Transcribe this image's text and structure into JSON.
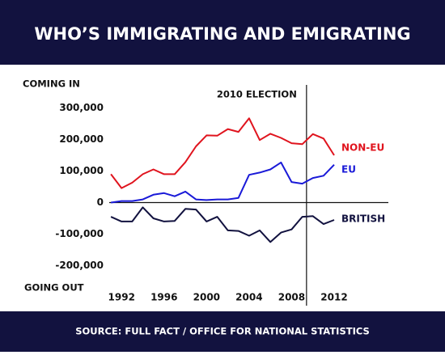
{
  "chart_data": {
    "type": "line",
    "title": "WHO’S IMMIGRATING AND EMIGRATING",
    "source": "SOURCE: FULL FACT / OFFICE FOR NATIONAL STATISTICS",
    "top_label": "COMING IN",
    "bottom_label": "GOING OUT",
    "annotation": {
      "text": "2010 ELECTION",
      "x": 2009.4
    },
    "x": [
      1991,
      1992,
      1993,
      1994,
      1995,
      1996,
      1997,
      1998,
      1999,
      2000,
      2001,
      2002,
      2003,
      2004,
      2005,
      2006,
      2007,
      2008,
      2009,
      2010,
      2011,
      2012
    ],
    "series": [
      {
        "name": "NON-EU",
        "color": "#e0141e",
        "values": [
          90000,
          46000,
          63000,
          90000,
          105000,
          90000,
          90000,
          128000,
          178000,
          213000,
          212000,
          233000,
          224000,
          267000,
          198000,
          218000,
          205000,
          188000,
          185000,
          217000,
          203000,
          150000
        ]
      },
      {
        "name": "EU",
        "color": "#1a1ad8",
        "values": [
          0,
          5000,
          5000,
          10000,
          25000,
          30000,
          20000,
          35000,
          10000,
          8000,
          10000,
          10000,
          15000,
          88000,
          95000,
          105000,
          127000,
          65000,
          60000,
          78000,
          85000,
          120000
        ]
      },
      {
        "name": "BRITISH",
        "color": "#12123f",
        "values": [
          -45000,
          -60000,
          -60000,
          -15000,
          -50000,
          -60000,
          -58000,
          -20000,
          -22000,
          -60000,
          -45000,
          -88000,
          -90000,
          -105000,
          -88000,
          -125000,
          -95000,
          -85000,
          -45000,
          -43000,
          -68000,
          -55000
        ]
      }
    ],
    "xlim": [
      1989.7,
      2017.1
    ],
    "xticks": [
      1992,
      1996,
      2000,
      2004,
      2008,
      2012
    ],
    "ylim": [
      -260000,
      360000
    ],
    "yticks": [
      {
        "value": 300000,
        "label": "300,000"
      },
      {
        "value": 200000,
        "label": "200,000"
      },
      {
        "value": 100000,
        "label": "100,000"
      },
      0,
      {
        "value": -100000,
        "label": "-100,000"
      },
      {
        "value": -200000,
        "label": "-200,000"
      }
    ]
  }
}
